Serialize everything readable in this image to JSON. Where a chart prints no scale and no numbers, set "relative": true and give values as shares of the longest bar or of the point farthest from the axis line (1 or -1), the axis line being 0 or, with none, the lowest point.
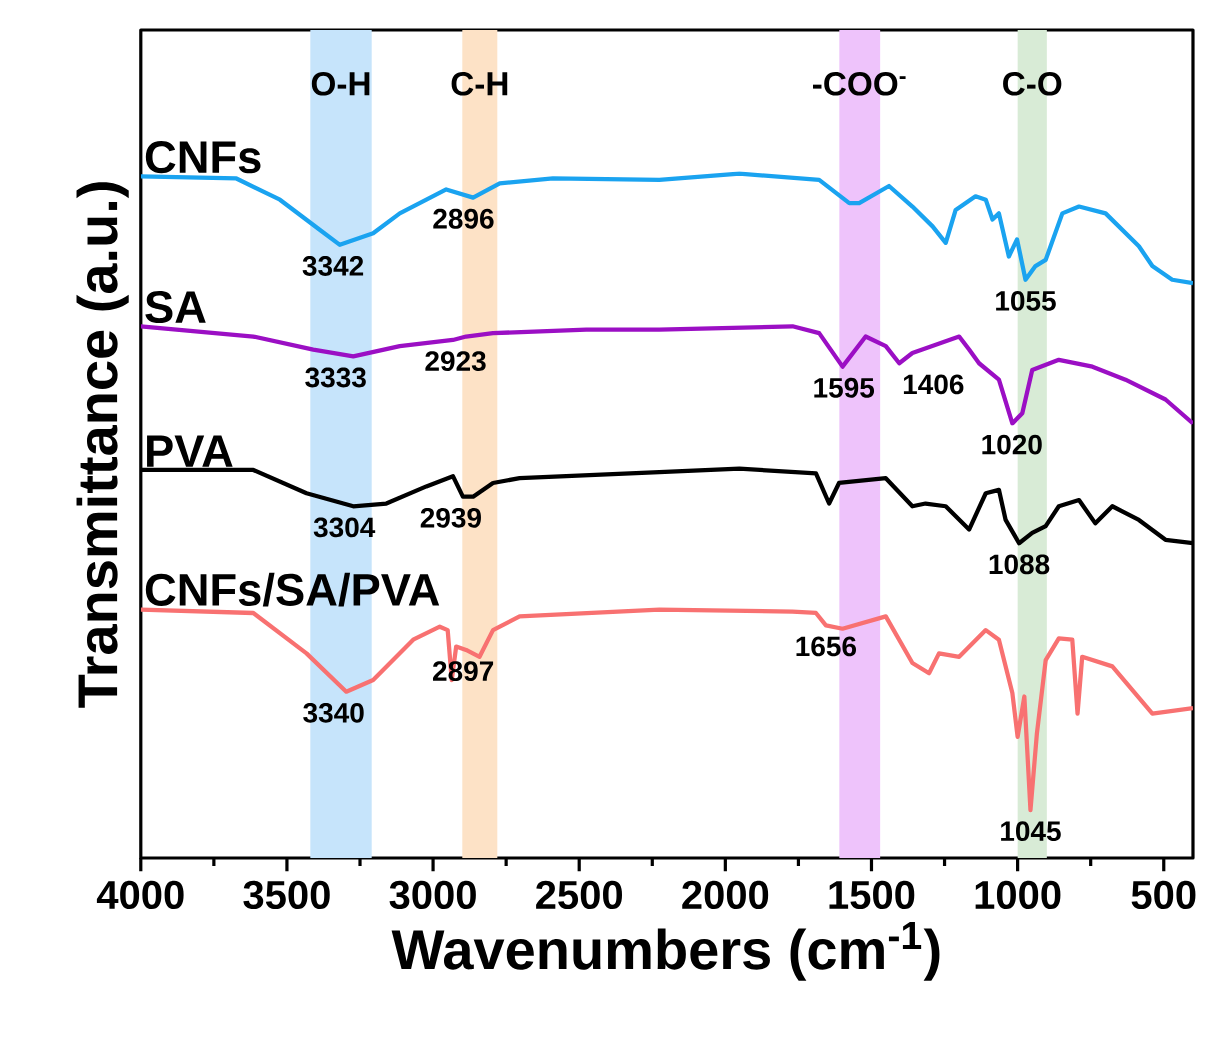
{
  "chart_data": {
    "type": "line",
    "relative": true,
    "xlabel": "Wavenumbers (cm$^{-1}$)",
    "ylabel": "Transmittance (a.u.)",
    "xlim": [
      4000,
      400
    ],
    "xticks": [
      4000,
      3500,
      3000,
      2500,
      2000,
      1500,
      1000,
      500
    ],
    "series": [
      {
        "name": "CNFs",
        "color": "#1aa3f0",
        "x": [
          4000,
          3673,
          3524,
          3388,
          3319,
          3205,
          3114,
          2955,
          2863,
          2772,
          2590,
          2226,
          1952,
          1679,
          1576,
          1542,
          1440,
          1360,
          1291,
          1246,
          1212,
          1144,
          1109,
          1086,
          1064,
          1030,
          1002,
          973,
          939,
          904,
          847,
          790,
          699,
          585,
          539,
          471,
          400
        ],
        "values": [
          0.996,
          0.993,
          0.962,
          0.918,
          0.896,
          0.913,
          0.942,
          0.977,
          0.965,
          0.986,
          0.993,
          0.991,
          1.0,
          0.991,
          0.957,
          0.957,
          0.982,
          0.952,
          0.923,
          0.899,
          0.947,
          0.967,
          0.962,
          0.933,
          0.942,
          0.879,
          0.904,
          0.845,
          0.865,
          0.874,
          0.942,
          0.952,
          0.942,
          0.894,
          0.865,
          0.845,
          0.84
        ]
      },
      {
        "name": "SA",
        "color": "#9b0fc4",
        "x": [
          4000,
          3615,
          3410,
          3273,
          3114,
          2932,
          2887,
          2795,
          2476,
          2226,
          1770,
          1679,
          1599,
          1520,
          1451,
          1405,
          1360,
          1200,
          1166,
          1132,
          1064,
          1018,
          984,
          950,
          859,
          744,
          631,
          494,
          400
        ],
        "values": [
          0.777,
          0.762,
          0.743,
          0.733,
          0.748,
          0.757,
          0.762,
          0.767,
          0.772,
          0.772,
          0.777,
          0.767,
          0.718,
          0.762,
          0.748,
          0.723,
          0.738,
          0.762,
          0.743,
          0.723,
          0.699,
          0.635,
          0.65,
          0.713,
          0.728,
          0.718,
          0.699,
          0.67,
          0.635
        ]
      },
      {
        "name": "PVA",
        "color": "#000000",
        "x": [
          4000,
          3615,
          3433,
          3273,
          3160,
          3023,
          2932,
          2898,
          2863,
          2795,
          2704,
          2226,
          1952,
          1690,
          1645,
          1611,
          1451,
          1360,
          1315,
          1246,
          1166,
          1109,
          1064,
          1041,
          995,
          950,
          904,
          859,
          790,
          734,
          676,
          585,
          494,
          400
        ],
        "values": [
          0.567,
          0.567,
          0.533,
          0.514,
          0.518,
          0.543,
          0.558,
          0.528,
          0.528,
          0.548,
          0.555,
          0.564,
          0.569,
          0.562,
          0.518,
          0.548,
          0.555,
          0.514,
          0.518,
          0.514,
          0.48,
          0.533,
          0.538,
          0.494,
          0.46,
          0.475,
          0.485,
          0.514,
          0.523,
          0.489,
          0.514,
          0.494,
          0.465,
          0.46
        ]
      },
      {
        "name": "CNFs/SA/PVA",
        "color": "#f87171",
        "x": [
          4000,
          3615,
          3433,
          3297,
          3205,
          3068,
          2977,
          2950,
          2936,
          2921,
          2887,
          2841,
          2795,
          2704,
          2226,
          1770,
          1690,
          1656,
          1599,
          1451,
          1360,
          1303,
          1269,
          1200,
          1109,
          1064,
          1018,
          1000,
          977,
          956,
          934,
          904,
          859,
          813,
          795,
          779,
          676,
          539,
          400
        ],
        "values": [
          0.363,
          0.358,
          0.299,
          0.243,
          0.26,
          0.319,
          0.338,
          0.333,
          0.26,
          0.309,
          0.304,
          0.294,
          0.333,
          0.353,
          0.363,
          0.36,
          0.358,
          0.34,
          0.335,
          0.353,
          0.285,
          0.27,
          0.299,
          0.294,
          0.333,
          0.319,
          0.241,
          0.177,
          0.236,
          0.07,
          0.182,
          0.289,
          0.321,
          0.319,
          0.211,
          0.294,
          0.28,
          0.211,
          0.219
        ]
      }
    ],
    "bands": [
      {
        "axis": "x",
        "from": 3420,
        "to": 3210,
        "label": "O-H",
        "color": "#c6e4fb"
      },
      {
        "axis": "x",
        "from": 2900,
        "to": 2780,
        "label": "C-H",
        "color": "#fde2c6"
      },
      {
        "axis": "x",
        "from": 1610,
        "to": 1470,
        "label": "-COO$^{-}$",
        "color": "#eec3fb"
      },
      {
        "axis": "x",
        "from": 1000,
        "to": 900,
        "label": "C-O",
        "color": "#d8ebd6"
      }
    ],
    "annotations": [
      {
        "text": "3342",
        "x": 3342,
        "y": 0.896
      },
      {
        "text": "2896",
        "x": 2896,
        "y": 0.965
      },
      {
        "text": "1055",
        "x": 973,
        "y": 0.845
      },
      {
        "text": "3333",
        "x": 3333,
        "y": 0.733
      },
      {
        "text": "2923",
        "x": 2923,
        "y": 0.757
      },
      {
        "text": "1595",
        "x": 1595,
        "y": 0.718
      },
      {
        "text": "1406",
        "x": 1406,
        "y": 0.723
      },
      {
        "text": "1020",
        "x": 1020,
        "y": 0.635
      },
      {
        "text": "3304",
        "x": 3304,
        "y": 0.514
      },
      {
        "text": "2939",
        "x": 2939,
        "y": 0.528
      },
      {
        "text": "1088",
        "x": 995,
        "y": 0.46
      },
      {
        "text": "3340",
        "x": 3340,
        "y": 0.243
      },
      {
        "text": "2897",
        "x": 2897,
        "y": 0.304
      },
      {
        "text": "1656",
        "x": 1656,
        "y": 0.34
      },
      {
        "text": "1045",
        "x": 956,
        "y": 0.07
      }
    ]
  }
}
